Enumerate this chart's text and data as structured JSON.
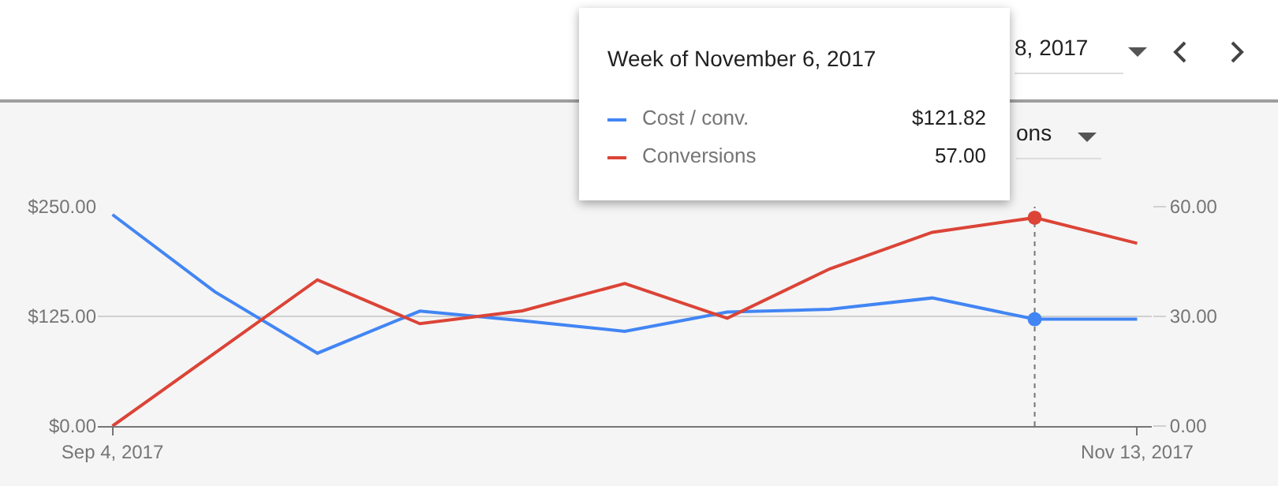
{
  "chart_data": {
    "type": "line",
    "x": [
      "2017-09-04",
      "2017-09-11",
      "2017-09-18",
      "2017-09-25",
      "2017-10-02",
      "2017-10-09",
      "2017-10-16",
      "2017-10-23",
      "2017-10-30",
      "2017-11-06",
      "2017-11-13"
    ],
    "series": [
      {
        "name": "Cost / conv.",
        "color": "#4285f4",
        "values": [
          241,
          153,
          83,
          131,
          120,
          108,
          130,
          133,
          146,
          121.82,
          121.82
        ]
      },
      {
        "name": "Conversions",
        "color": "#db4437",
        "axis": "y2",
        "values": [
          0,
          20,
          40,
          28,
          31.5,
          39,
          29.5,
          43,
          53,
          57,
          50
        ]
      }
    ],
    "xlim": [
      "2017-09-03",
      "2017-11-14"
    ],
    "xticks": [
      {
        "value": "2017-09-04",
        "label": "Sep 4, 2017"
      },
      {
        "value": "2017-11-13",
        "label": "Nov 13, 2017"
      }
    ],
    "ylim": [
      0,
      250
    ],
    "yticks": [
      {
        "value": 0,
        "label": "$0.00"
      },
      {
        "value": 125,
        "label": "$125.00"
      },
      {
        "value": 250,
        "label": "$250.00"
      }
    ],
    "y2lim": [
      0,
      60
    ],
    "y2ticks": [
      {
        "value": 0,
        "label": "0.00"
      },
      {
        "value": 30,
        "label": "30.00"
      },
      {
        "value": 60,
        "label": "60.00"
      }
    ],
    "ref_lines": [
      {
        "axis": "x",
        "value": "2017-11-06",
        "line_style": "dotted",
        "color": "#757575"
      }
    ],
    "annotations": [
      "Week of November 6, 2017",
      "8, 2017",
      "ons",
      "$121.82",
      "57.00"
    ],
    "grid": "y",
    "legend": "top",
    "marker": "none",
    "line_style": "solid"
  }
}
